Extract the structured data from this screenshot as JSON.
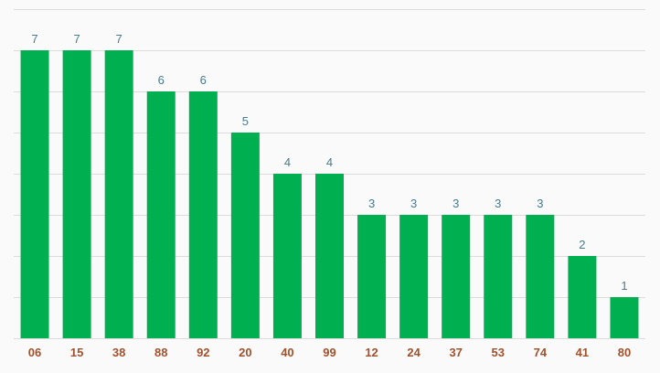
{
  "chart_data": {
    "type": "bar",
    "categories": [
      "06",
      "15",
      "38",
      "88",
      "92",
      "20",
      "40",
      "99",
      "12",
      "24",
      "37",
      "53",
      "74",
      "41",
      "80"
    ],
    "values": [
      7,
      7,
      7,
      6,
      6,
      5,
      4,
      4,
      3,
      3,
      3,
      3,
      3,
      2,
      1
    ],
    "title": "",
    "xlabel": "",
    "ylabel": "",
    "ylim": [
      0,
      8
    ],
    "grid": true,
    "legend": "none",
    "colors": {
      "bar": "#00b050",
      "value_label": "#4a7a8c",
      "tick_label": "#a0522d",
      "grid": "#dcdcdc",
      "background": "#fafafa"
    }
  }
}
